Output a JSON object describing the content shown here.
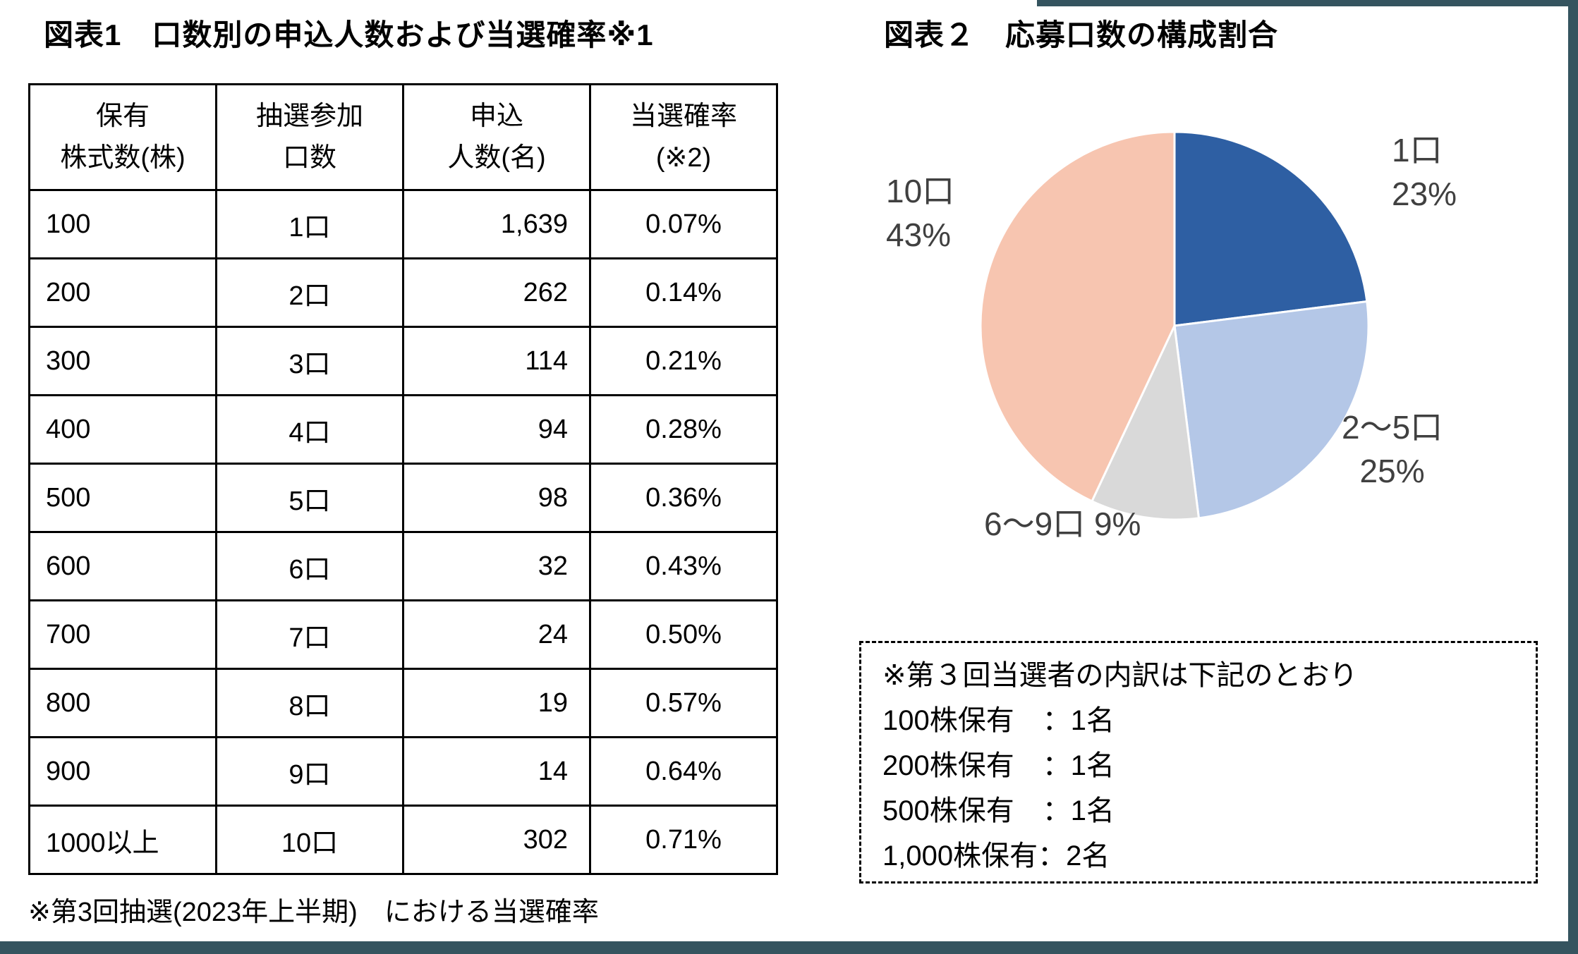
{
  "page": {
    "background_color": "#ffffff",
    "frame_color": "#35545f",
    "text_color": "#000000",
    "pie_label_color": "#404040"
  },
  "chart_data": [
    {
      "type": "table",
      "title": "図表1　口数別の申込人数および当選確率※1",
      "columns": [
        "保有株式数(株)",
        "抽選参加口数",
        "申込人数(名)",
        "当選確率(※2)"
      ],
      "columns_two_line": [
        [
          "保有",
          "株式数(株)"
        ],
        [
          "抽選参加",
          "口数"
        ],
        [
          "申込",
          "人数(名)"
        ],
        [
          "当選確率",
          "(※2)"
        ]
      ],
      "rows": [
        [
          "100",
          "1口",
          "1,639",
          "0.07%"
        ],
        [
          "200",
          "2口",
          "262",
          "0.14%"
        ],
        [
          "300",
          "3口",
          "114",
          "0.21%"
        ],
        [
          "400",
          "4口",
          "94",
          "0.28%"
        ],
        [
          "500",
          "5口",
          "98",
          "0.36%"
        ],
        [
          "600",
          "6口",
          "32",
          "0.43%"
        ],
        [
          "700",
          "7口",
          "24",
          "0.50%"
        ],
        [
          "800",
          "8口",
          "19",
          "0.57%"
        ],
        [
          "900",
          "9口",
          "14",
          "0.64%"
        ],
        [
          "1000以上",
          "10口",
          "302",
          "0.71%"
        ]
      ],
      "footnote": "※第3回抽選(2023年上半期)　における当選確率"
    },
    {
      "type": "pie",
      "title": "図表２　応募口数の構成割合",
      "categories": [
        "1口",
        "2〜5口",
        "6〜9口",
        "10口"
      ],
      "values": [
        23,
        25,
        9,
        43
      ],
      "unit": "%",
      "colors": [
        "#2e5fa3",
        "#b4c7e7",
        "#d9d9d9",
        "#f7c5b0"
      ],
      "start_angle_deg": -90,
      "direction": "clockwise",
      "legend": "none",
      "slice_labels": [
        [
          "1口",
          "23%"
        ],
        [
          "2〜5口",
          "25%"
        ],
        [
          "6〜9口 9%"
        ],
        [
          "10口",
          "43%"
        ]
      ],
      "annotations": [
        "※第３回当選者の内訳は下記のとおり",
        "100株保有　：1名",
        "200株保有　：1名",
        "500株保有　：1名",
        "1,000株保有：2名"
      ]
    }
  ]
}
